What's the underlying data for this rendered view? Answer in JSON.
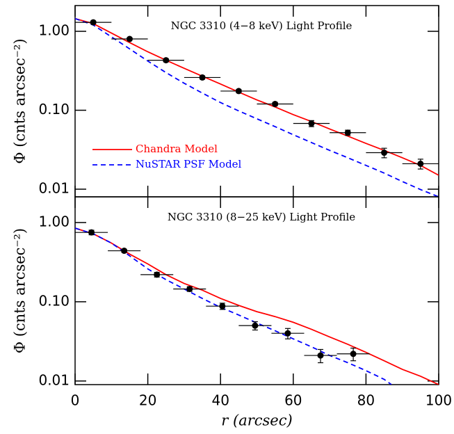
{
  "chart_data": [
    {
      "type": "line",
      "title": "NGC 3310 (4−8 keV) Light Profile",
      "ylabel": "Φ (cnts arcsec⁻²)",
      "log_y": true,
      "xlim": [
        0,
        100
      ],
      "ylim": [
        0.008,
        2.12
      ],
      "yticks": [
        {
          "value": 1,
          "label": "1.00"
        },
        {
          "value": 0.1,
          "label": "0.10"
        },
        {
          "value": 0.01,
          "label": "0.01"
        }
      ],
      "legend": "lower left",
      "points": {
        "color": "#000000",
        "x": [
          5,
          15,
          25,
          35,
          45,
          55,
          65,
          75,
          85,
          95
        ],
        "xerr": [
          5,
          5,
          5,
          5,
          5,
          5,
          5,
          5,
          5,
          5
        ],
        "values": [
          1.3,
          0.8,
          0.43,
          0.26,
          0.175,
          0.12,
          0.068,
          0.052,
          0.029,
          0.021
        ],
        "yerr": [
          0.05,
          0.03,
          0.02,
          0.012,
          0.008,
          0.006,
          0.006,
          0.004,
          0.004,
          0.003
        ]
      },
      "series": [
        {
          "name": "Chandra Model",
          "color": "#ff0000",
          "dash": false,
          "x": [
            0,
            5,
            10,
            15,
            20,
            25,
            30,
            35,
            40,
            45,
            50,
            55,
            60,
            65,
            70,
            75,
            80,
            85,
            90,
            95,
            100
          ],
          "values": [
            1.45,
            1.25,
            0.95,
            0.72,
            0.55,
            0.43,
            0.34,
            0.27,
            0.215,
            0.17,
            0.135,
            0.11,
            0.088,
            0.072,
            0.058,
            0.047,
            0.038,
            0.031,
            0.025,
            0.02,
            0.015
          ]
        },
        {
          "name": "NuSTAR PSF Model",
          "color": "#0000ff",
          "dash": true,
          "x": [
            0,
            5,
            10,
            15,
            20,
            25,
            30,
            35,
            40,
            45,
            50,
            55,
            60,
            65,
            70,
            75,
            80,
            85,
            90,
            95,
            100
          ],
          "values": [
            1.45,
            1.2,
            0.85,
            0.6,
            0.42,
            0.3,
            0.22,
            0.165,
            0.125,
            0.098,
            0.078,
            0.062,
            0.049,
            0.039,
            0.031,
            0.025,
            0.02,
            0.016,
            0.0125,
            0.0099,
            0.008
          ]
        }
      ]
    },
    {
      "type": "line",
      "title": "NGC 3310 (8−25 keV) Light Profile",
      "ylabel": "Φ (cnts arcsec⁻²)",
      "xlabel": "r (arcsec)",
      "log_y": true,
      "xlim": [
        0,
        100
      ],
      "ylim": [
        0.009,
        2.11
      ],
      "xticks": [
        0,
        20,
        40,
        60,
        80,
        100
      ],
      "yticks": [
        {
          "value": 1,
          "label": "1.00"
        },
        {
          "value": 0.1,
          "label": "0.10"
        },
        {
          "value": 0.01,
          "label": "0.01"
        }
      ],
      "points": {
        "color": "#000000",
        "x": [
          4.5,
          13.5,
          22.5,
          31.5,
          40.5,
          49.5,
          58.5,
          67.5,
          76.5
        ],
        "xerr": [
          4.5,
          4.5,
          4.5,
          4.5,
          4.5,
          4.5,
          4.5,
          4.5,
          4.5
        ],
        "values": [
          0.75,
          0.44,
          0.22,
          0.145,
          0.088,
          0.05,
          0.04,
          0.021,
          0.022
        ],
        "yerr": [
          0.05,
          0.02,
          0.015,
          0.01,
          0.008,
          0.006,
          0.006,
          0.004,
          0.004
        ]
      },
      "series": [
        {
          "color": "#ff0000",
          "dash": false,
          "x": [
            0,
            5,
            10,
            15,
            20,
            25,
            30,
            35,
            40,
            45,
            50,
            55,
            60,
            65,
            70,
            75,
            80,
            85,
            90,
            95,
            100
          ],
          "values": [
            0.85,
            0.72,
            0.55,
            0.4,
            0.3,
            0.22,
            0.17,
            0.14,
            0.11,
            0.09,
            0.075,
            0.065,
            0.055,
            0.045,
            0.036,
            0.029,
            0.023,
            0.018,
            0.014,
            0.0115,
            0.009
          ]
        },
        {
          "color": "#0000ff",
          "dash": true,
          "x": [
            0,
            5,
            10,
            15,
            20,
            25,
            30,
            35,
            40,
            45,
            50,
            55,
            60,
            65,
            70,
            75,
            80,
            85,
            87
          ],
          "values": [
            0.85,
            0.72,
            0.55,
            0.38,
            0.26,
            0.19,
            0.145,
            0.11,
            0.085,
            0.068,
            0.054,
            0.043,
            0.034,
            0.027,
            0.021,
            0.017,
            0.0135,
            0.0105,
            0.009
          ]
        }
      ]
    }
  ]
}
